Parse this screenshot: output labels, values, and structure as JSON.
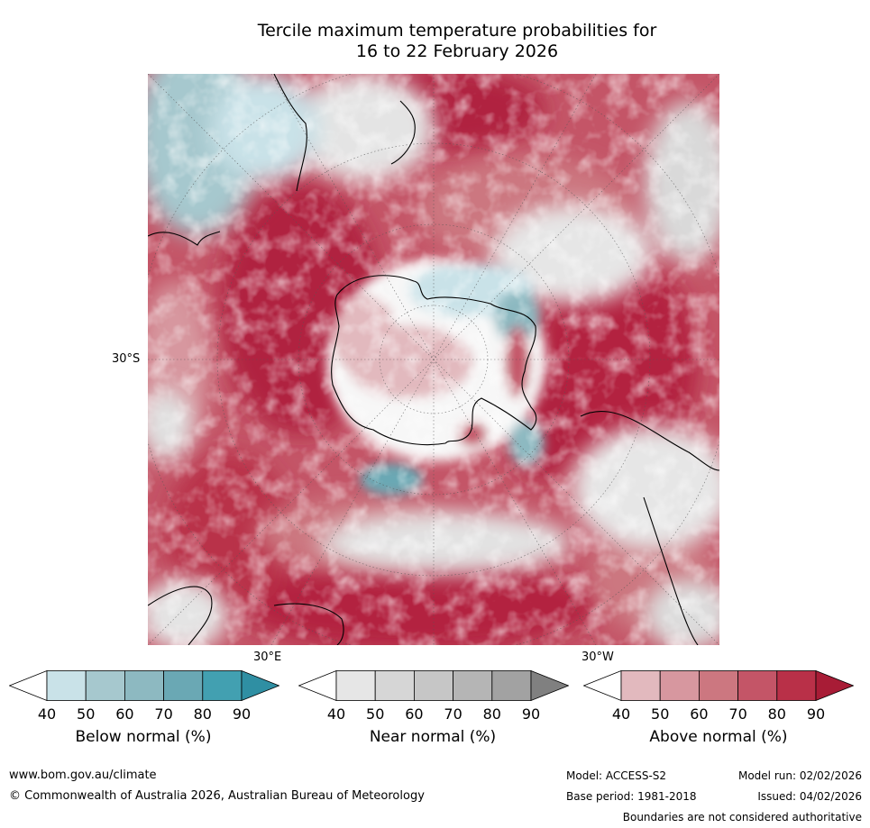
{
  "title": {
    "line1": "Tercile maximum temperature probabilities for",
    "line2": "16 to 22 February 2026"
  },
  "map": {
    "lat_label": "30°S",
    "lon_label_east": "30°E",
    "lon_label_west": "30°W",
    "colors": {
      "above": [
        "#e2b9be",
        "#d7979f",
        "#cc7780",
        "#c45567",
        "#b93048",
        "#a81c36"
      ],
      "below": [
        "#c9e2e8",
        "#a6c8ce",
        "#8db9c1",
        "#6aa8b4",
        "#42a0b1",
        "#2f8fa3"
      ],
      "near": [
        "#e6e6e6",
        "#d6d6d6",
        "#c6c6c6",
        "#b5b5b5",
        "#a2a2a2",
        "#808080"
      ]
    }
  },
  "colorbars": [
    {
      "label": "Below normal (%)",
      "ticks": [
        "40",
        "50",
        "60",
        "70",
        "80",
        "90"
      ],
      "colors": [
        "#ffffff",
        "#c9e2e8",
        "#a6c8ce",
        "#8db9c1",
        "#6aa8b4",
        "#42a0b1",
        "#2f8fa3"
      ]
    },
    {
      "label": "Near normal (%)",
      "ticks": [
        "40",
        "50",
        "60",
        "70",
        "80",
        "90"
      ],
      "colors": [
        "#ffffff",
        "#e6e6e6",
        "#d6d6d6",
        "#c6c6c6",
        "#b5b5b5",
        "#a2a2a2",
        "#808080"
      ]
    },
    {
      "label": "Above normal (%)",
      "ticks": [
        "40",
        "50",
        "60",
        "70",
        "80",
        "90"
      ],
      "colors": [
        "#ffffff",
        "#e2b9be",
        "#d7979f",
        "#cc7780",
        "#c45567",
        "#b93048",
        "#a81c36"
      ]
    }
  ],
  "footer": {
    "website": "www.bom.gov.au/climate",
    "copyright": "© Commonwealth of Australia 2026, Australian Bureau of Meteorology",
    "model": "Model: ACCESS-S2",
    "base_period": "Base period: 1981-2018",
    "model_run": "Model run: 02/02/2026",
    "issued": "Issued: 04/02/2026",
    "boundaries": "Boundaries are not considered authoritative"
  }
}
